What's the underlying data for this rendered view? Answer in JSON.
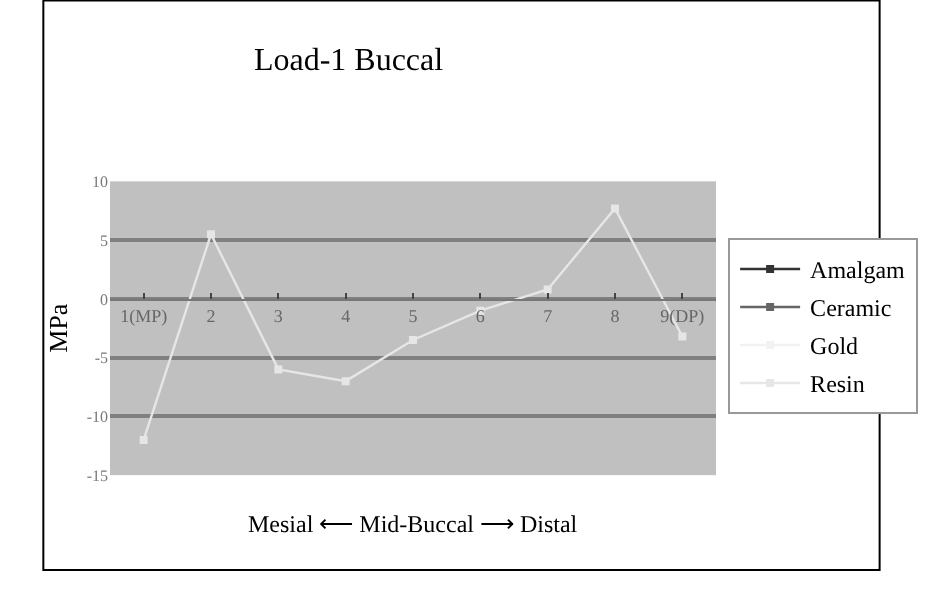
{
  "chart_data": {
    "type": "line",
    "title": "Load-1 Buccal",
    "ylabel": "MPa",
    "categories": [
      "1(MP)",
      "2",
      "3",
      "4",
      "5",
      "6",
      "7",
      "8",
      "9(DP)"
    ],
    "series": [
      {
        "name": "Amalgam",
        "color": "#333333",
        "values": [
          null,
          null,
          null,
          null,
          null,
          null,
          null,
          null,
          null
        ]
      },
      {
        "name": "Ceramic",
        "color": "#666666",
        "values": [
          null,
          null,
          null,
          null,
          null,
          null,
          null,
          null,
          null
        ]
      },
      {
        "name": "Gold",
        "color": "#f2f2f2",
        "values": [
          null,
          null,
          null,
          null,
          null,
          null,
          null,
          null,
          null
        ]
      },
      {
        "name": "Resin",
        "color": "#e6e6e6",
        "values": [
          -12,
          5.5,
          -6,
          -7,
          -3.5,
          -1,
          0.8,
          7.7,
          -3.2
        ]
      }
    ],
    "ylim": [
      -15,
      10
    ],
    "yticks": [
      -15,
      -10,
      -5,
      0,
      5,
      10
    ],
    "grid": "y",
    "legend": "right",
    "marker": "square",
    "line_style": "solid",
    "annotations": [
      "Mesial ⟵ Mid-Buccal ⟶ Distal"
    ]
  }
}
